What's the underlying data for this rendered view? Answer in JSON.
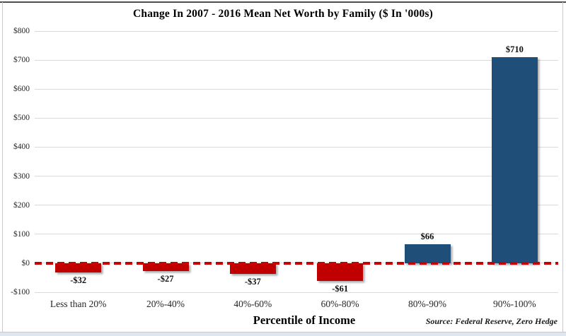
{
  "chart_data": {
    "type": "bar",
    "title": "Change In 2007 - 2016 Mean Net Worth by Family ($ In '000s)",
    "xlabel": "Percentile of Income",
    "ylabel": "",
    "categories": [
      "Less than 20%",
      "20%-40%",
      "40%-60%",
      "60%-80%",
      "80%-90%",
      "90%-100%"
    ],
    "values": [
      -32,
      -27,
      -37,
      -61,
      66,
      710
    ],
    "value_labels": [
      "-$32",
      "-$27",
      "-$37",
      "-$61",
      "$66",
      "$710"
    ],
    "ylim": [
      -100,
      800
    ],
    "ytick_values": [
      800,
      700,
      600,
      500,
      400,
      300,
      200,
      100,
      0,
      -100
    ],
    "ytick_labels": [
      "$800",
      "$700",
      "$600",
      "$500",
      "$400",
      "$300",
      "$200",
      "$100",
      "$0",
      "-$100"
    ],
    "grid": "horizontal",
    "legend": "none",
    "zero_line_style": "dashed",
    "source_note": "Source: Federal Reserve, Zero Hedge",
    "colors": {
      "positive_bar": "#1F4E79",
      "negative_bar": "#C00000",
      "zero_line": "#CC0000",
      "gridline": "#D9D9D9",
      "title_text": "#000000",
      "tick_text": "#262626"
    }
  }
}
